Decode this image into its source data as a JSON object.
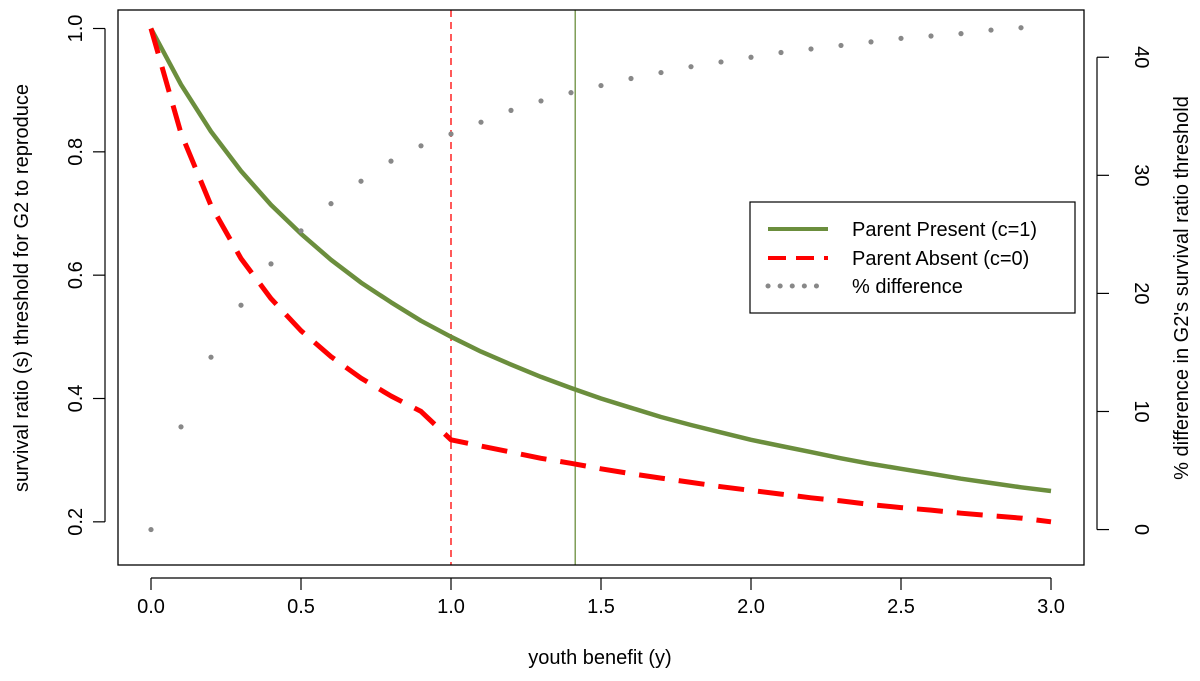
{
  "chart_data": {
    "type": "line",
    "xlabel": "youth benefit (y)",
    "ylabel": "survival ratio (s) threshold for G2 to reproduce",
    "y2label": "% difference in G2's survival ratio threshold",
    "xlim": [
      -0.11,
      3.11
    ],
    "ylim": [
      0.13,
      1.03
    ],
    "y2lim": [
      -3.0,
      44.0
    ],
    "x_ticks": [
      0.0,
      0.5,
      1.0,
      1.5,
      2.0,
      2.5,
      3.0
    ],
    "x_tick_labels": [
      "0.0",
      "0.5",
      "1.0",
      "1.5",
      "2.0",
      "2.5",
      "3.0"
    ],
    "y_ticks": [
      0.2,
      0.4,
      0.6,
      0.8,
      1.0
    ],
    "y_tick_labels": [
      "0.2",
      "0.4",
      "0.6",
      "0.8",
      "1.0"
    ],
    "y2_ticks": [
      0,
      10,
      20,
      30,
      40
    ],
    "y2_tick_labels": [
      "0",
      "10",
      "20",
      "30",
      "40"
    ],
    "grid": false,
    "legend_position": "right",
    "series": [
      {
        "name": "Parent Present (c=1)",
        "color": "#6b8e3d",
        "dash": "solid",
        "axis": "left",
        "x": [
          0.0,
          0.1,
          0.2,
          0.3,
          0.4,
          0.5,
          0.6,
          0.7,
          0.8,
          0.9,
          1.0,
          1.1,
          1.2,
          1.3,
          1.4,
          1.5,
          1.6,
          1.7,
          1.8,
          1.9,
          2.0,
          2.1,
          2.2,
          2.3,
          2.4,
          2.5,
          2.6,
          2.7,
          2.8,
          2.9,
          3.0
        ],
        "values": [
          1.0,
          0.909,
          0.833,
          0.769,
          0.714,
          0.667,
          0.625,
          0.588,
          0.556,
          0.526,
          0.5,
          0.476,
          0.455,
          0.435,
          0.417,
          0.4,
          0.385,
          0.37,
          0.357,
          0.345,
          0.333,
          0.323,
          0.313,
          0.303,
          0.294,
          0.286,
          0.278,
          0.27,
          0.263,
          0.256,
          0.25
        ]
      },
      {
        "name": "Parent Absent (c=0)",
        "color": "#ff0000",
        "dash": "dashed",
        "axis": "left",
        "x": [
          0.0,
          0.1,
          0.2,
          0.3,
          0.4,
          0.5,
          0.6,
          0.7,
          0.8,
          0.9,
          1.0,
          1.1,
          1.2,
          1.3,
          1.4,
          1.5,
          1.6,
          1.7,
          1.8,
          1.9,
          2.0,
          2.1,
          2.2,
          2.3,
          2.4,
          2.5,
          2.6,
          2.7,
          2.8,
          2.9,
          3.0
        ],
        "values": [
          1.0,
          0.83,
          0.713,
          0.627,
          0.562,
          0.51,
          0.468,
          0.433,
          0.404,
          0.379,
          0.333,
          0.323,
          0.313,
          0.303,
          0.295,
          0.286,
          0.278,
          0.271,
          0.264,
          0.257,
          0.251,
          0.245,
          0.239,
          0.234,
          0.228,
          0.223,
          0.219,
          0.214,
          0.21,
          0.206,
          0.2
        ]
      },
      {
        "name": "% difference",
        "color": "#888888",
        "dash": "dotted",
        "axis": "right",
        "x": [
          0.0,
          0.1,
          0.2,
          0.3,
          0.4,
          0.5,
          0.6,
          0.7,
          0.8,
          0.9,
          1.0,
          1.1,
          1.2,
          1.3,
          1.4,
          1.5,
          1.6,
          1.7,
          1.8,
          1.9,
          2.0,
          2.1,
          2.2,
          2.3,
          2.4,
          2.5,
          2.6,
          2.7,
          2.8,
          2.9
        ],
        "values": [
          0.0,
          8.7,
          14.6,
          19.0,
          22.5,
          25.3,
          27.6,
          29.5,
          31.2,
          32.5,
          33.5,
          34.5,
          35.5,
          36.3,
          37.0,
          37.6,
          38.2,
          38.7,
          39.2,
          39.6,
          40.0,
          40.4,
          40.7,
          41.0,
          41.3,
          41.6,
          41.8,
          42.0,
          42.3,
          42.5
        ]
      }
    ],
    "reference_lines": [
      {
        "x": 1.0,
        "color": "#ff0000",
        "dash": "dashed"
      },
      {
        "x": 1.414,
        "color": "#6b8e3d",
        "dash": "solid"
      }
    ]
  }
}
